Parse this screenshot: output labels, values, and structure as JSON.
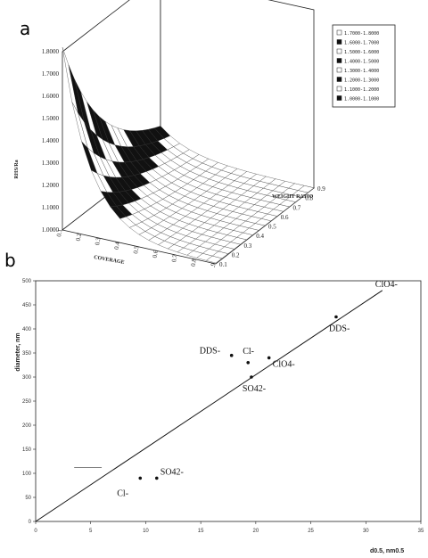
{
  "panel_a": {
    "label": "a",
    "chart_data": {
      "type": "surface",
      "zlabel": "RHS/Ra",
      "xlabel": "COVERAGE",
      "ylabel": "WEIGHT RATIO",
      "z_ticks": [
        "1.8000",
        "1.7000",
        "1.6000",
        "1.5000",
        "1.4000",
        "1.3000",
        "1.2000",
        "1.1000",
        "1.0000"
      ],
      "x_ticks": [
        "0.1",
        "0.2",
        "0.3",
        "0.4",
        "0.5",
        "0.6",
        "0.7",
        "0.8",
        "0.9"
      ],
      "y_ticks": [
        "0.1",
        "0.2",
        "0.3",
        "0.4",
        "0.5",
        "0.6",
        "0.7",
        "0.8",
        "0.9"
      ],
      "legend": [
        "1.7000-1.8000",
        "1.6000-1.7000",
        "1.5000-1.6000",
        "1.4000-1.5000",
        "1.3000-1.4000",
        "1.2000-1.3000",
        "1.1000-1.2000",
        "1.0000-1.1000"
      ],
      "legend_position": "top-right",
      "colors": {
        "band_dark": "#111111",
        "band_light": "#ffffff",
        "mesh": "#333333"
      }
    }
  },
  "panel_b": {
    "label": "b",
    "chart_data": {
      "type": "scatter",
      "xlabel": "d0.5, nm0.5",
      "ylabel": "diameter, nm",
      "xlim": [
        0,
        35
      ],
      "ylim": [
        0,
        500
      ],
      "x_ticks": [
        "0",
        "5",
        "10",
        "15",
        "20",
        "25",
        "30",
        "35"
      ],
      "y_ticks": [
        "0",
        "50",
        "100",
        "150",
        "200",
        "250",
        "300",
        "350",
        "400",
        "450",
        "500"
      ],
      "points": [
        {
          "x": 9.5,
          "y": 90,
          "label": "Cl-"
        },
        {
          "x": 11.0,
          "y": 90,
          "label": "SO42-"
        },
        {
          "x": 17.8,
          "y": 345,
          "label": "DDS-"
        },
        {
          "x": 19.3,
          "y": 330,
          "label": "Cl-"
        },
        {
          "x": 19.6,
          "y": 300,
          "label": "SO42-"
        },
        {
          "x": 21.2,
          "y": 340,
          "label": "ClO4-"
        },
        {
          "x": 27.3,
          "y": 425,
          "label": "DDS-"
        }
      ],
      "fit_line": {
        "x": [
          0,
          31.5
        ],
        "y": [
          0,
          480
        ]
      },
      "annotations": [
        {
          "text": "ClO4-",
          "x": 31.5,
          "y": 480
        }
      ],
      "grid": false
    }
  }
}
